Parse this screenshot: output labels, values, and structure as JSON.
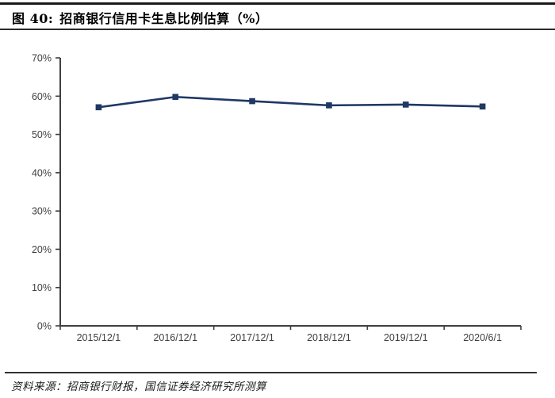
{
  "header": {
    "figure_label": "图 40:",
    "title": "招商银行信用卡生息比例估算（%）"
  },
  "footer": {
    "source": "资料来源：招商银行财报，国信证券经济研究所测算"
  },
  "colors": {
    "line": "#1F3864",
    "axis": "#404040",
    "tick_label": "#404040",
    "rule": "#1a1a1a"
  },
  "chart_data": {
    "type": "line",
    "title": "招商银行信用卡生息比例估算（%）",
    "categories": [
      "2015/12/1",
      "2016/12/1",
      "2017/12/1",
      "2018/12/1",
      "2019/12/1",
      "2020/6/1"
    ],
    "series": [
      {
        "name": "招商银行信用卡生息比例估算",
        "values": [
          57.1,
          59.8,
          58.7,
          57.6,
          57.8,
          57.3
        ]
      }
    ],
    "xlabel": "",
    "ylabel": "",
    "ylim": [
      0,
      70
    ],
    "ytick_step": 10,
    "ytick_suffix": "%",
    "grid": false,
    "legend_position": "none",
    "marker": "square"
  }
}
